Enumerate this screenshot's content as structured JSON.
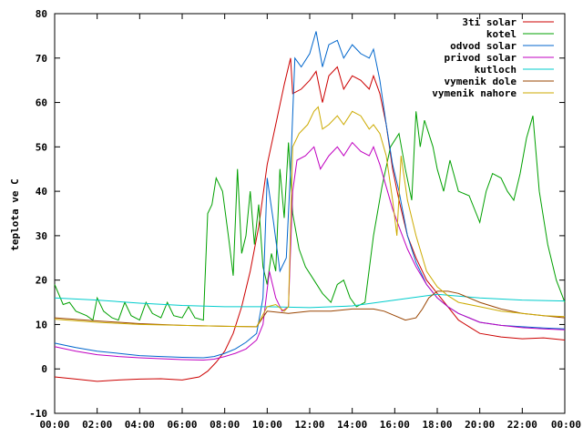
{
  "chart_data": {
    "type": "line",
    "title": "",
    "xlabel": "",
    "ylabel": "teplota ve C",
    "ylim": [
      -10,
      80
    ],
    "xlim": [
      0,
      24
    ],
    "yticks": [
      -10,
      0,
      10,
      20,
      30,
      40,
      50,
      60,
      70,
      80
    ],
    "xticks": [
      "00:00",
      "02:00",
      "04:00",
      "06:00",
      "08:00",
      "10:00",
      "12:00",
      "14:00",
      "16:00",
      "18:00",
      "20:00",
      "22:00",
      "00:00"
    ],
    "grid": false,
    "legend_position": "top-right",
    "series": [
      {
        "name": "3ti solar",
        "color": "#cc0000",
        "points": [
          [
            0,
            -1.8
          ],
          [
            1,
            -2.3
          ],
          [
            2,
            -2.8
          ],
          [
            3,
            -2.5
          ],
          [
            4,
            -2.3
          ],
          [
            5,
            -2.2
          ],
          [
            6,
            -2.5
          ],
          [
            6.8,
            -1.8
          ],
          [
            7.2,
            -0.5
          ],
          [
            7.6,
            1.5
          ],
          [
            8,
            4
          ],
          [
            8.4,
            8
          ],
          [
            8.8,
            14
          ],
          [
            9.2,
            22
          ],
          [
            9.6,
            32
          ],
          [
            10,
            46
          ],
          [
            10.4,
            55
          ],
          [
            10.8,
            64
          ],
          [
            11.1,
            70
          ],
          [
            11.2,
            62
          ],
          [
            11.6,
            63
          ],
          [
            12,
            65
          ],
          [
            12.3,
            67
          ],
          [
            12.6,
            60
          ],
          [
            12.9,
            66
          ],
          [
            13.3,
            68
          ],
          [
            13.6,
            63
          ],
          [
            14,
            66
          ],
          [
            14.4,
            65
          ],
          [
            14.8,
            63
          ],
          [
            15,
            66
          ],
          [
            15.3,
            62
          ],
          [
            15.6,
            55
          ],
          [
            15.9,
            45
          ],
          [
            16.2,
            38
          ],
          [
            16.6,
            30
          ],
          [
            17,
            25
          ],
          [
            17.5,
            20
          ],
          [
            18,
            17
          ],
          [
            18.5,
            14
          ],
          [
            19,
            11
          ],
          [
            19.5,
            9.5
          ],
          [
            20,
            8
          ],
          [
            21,
            7.2
          ],
          [
            22,
            6.8
          ],
          [
            23,
            7
          ],
          [
            24,
            6.5
          ]
        ]
      },
      {
        "name": "kotel",
        "color": "#00a000",
        "points": [
          [
            0,
            19
          ],
          [
            0.4,
            14.5
          ],
          [
            0.7,
            15
          ],
          [
            1,
            13
          ],
          [
            1.5,
            12
          ],
          [
            1.8,
            11
          ],
          [
            2,
            16
          ],
          [
            2.3,
            13
          ],
          [
            2.7,
            11.5
          ],
          [
            3,
            11
          ],
          [
            3.3,
            15
          ],
          [
            3.6,
            12
          ],
          [
            4,
            11
          ],
          [
            4.3,
            15
          ],
          [
            4.6,
            12.5
          ],
          [
            5,
            11.5
          ],
          [
            5.3,
            15
          ],
          [
            5.6,
            12
          ],
          [
            6,
            11.5
          ],
          [
            6.3,
            14
          ],
          [
            6.6,
            11.5
          ],
          [
            7,
            11
          ],
          [
            7.2,
            35
          ],
          [
            7.4,
            37
          ],
          [
            7.6,
            43
          ],
          [
            7.9,
            40
          ],
          [
            8.2,
            29
          ],
          [
            8.4,
            21
          ],
          [
            8.6,
            45
          ],
          [
            8.8,
            26
          ],
          [
            9,
            30
          ],
          [
            9.2,
            40
          ],
          [
            9.4,
            28
          ],
          [
            9.6,
            37
          ],
          [
            9.8,
            23
          ],
          [
            10,
            19
          ],
          [
            10.2,
            26
          ],
          [
            10.4,
            22
          ],
          [
            10.6,
            45
          ],
          [
            10.8,
            34
          ],
          [
            11,
            51
          ],
          [
            11.2,
            35
          ],
          [
            11.5,
            27
          ],
          [
            11.8,
            23
          ],
          [
            12.2,
            20
          ],
          [
            12.6,
            17
          ],
          [
            13,
            15
          ],
          [
            13.3,
            19
          ],
          [
            13.6,
            20
          ],
          [
            13.9,
            16
          ],
          [
            14.2,
            14
          ],
          [
            14.6,
            15
          ],
          [
            15,
            30
          ],
          [
            15.4,
            41
          ],
          [
            15.8,
            50
          ],
          [
            16.2,
            53
          ],
          [
            16.5,
            45
          ],
          [
            16.8,
            38
          ],
          [
            17,
            58
          ],
          [
            17.2,
            50
          ],
          [
            17.4,
            56
          ],
          [
            17.6,
            53
          ],
          [
            17.8,
            50
          ],
          [
            18,
            45
          ],
          [
            18.3,
            40
          ],
          [
            18.6,
            47
          ],
          [
            19,
            40
          ],
          [
            19.5,
            39
          ],
          [
            20,
            33
          ],
          [
            20.3,
            40
          ],
          [
            20.6,
            44
          ],
          [
            21,
            43
          ],
          [
            21.3,
            40
          ],
          [
            21.6,
            38
          ],
          [
            21.9,
            44
          ],
          [
            22.2,
            52
          ],
          [
            22.5,
            57
          ],
          [
            22.8,
            40
          ],
          [
            23.2,
            28
          ],
          [
            23.6,
            20
          ],
          [
            24,
            15
          ]
        ]
      },
      {
        "name": "odvod solar",
        "color": "#0066cc",
        "points": [
          [
            0,
            5.8
          ],
          [
            1,
            4.8
          ],
          [
            2,
            4
          ],
          [
            3,
            3.5
          ],
          [
            4,
            3
          ],
          [
            5,
            2.8
          ],
          [
            6,
            2.6
          ],
          [
            7,
            2.5
          ],
          [
            7.5,
            2.8
          ],
          [
            8,
            3.5
          ],
          [
            8.5,
            4.5
          ],
          [
            9,
            6
          ],
          [
            9.5,
            8
          ],
          [
            9.8,
            16
          ],
          [
            10,
            43
          ],
          [
            10.3,
            33
          ],
          [
            10.6,
            22
          ],
          [
            10.9,
            25
          ],
          [
            11.1,
            45
          ],
          [
            11.3,
            70
          ],
          [
            11.6,
            68
          ],
          [
            12,
            71
          ],
          [
            12.3,
            76
          ],
          [
            12.6,
            68
          ],
          [
            12.9,
            73
          ],
          [
            13.3,
            74
          ],
          [
            13.6,
            70
          ],
          [
            14,
            73
          ],
          [
            14.4,
            71
          ],
          [
            14.8,
            70
          ],
          [
            15,
            72
          ],
          [
            15.3,
            65
          ],
          [
            15.6,
            55
          ],
          [
            15.9,
            46
          ],
          [
            16.2,
            40
          ],
          [
            16.6,
            30
          ],
          [
            17,
            24
          ],
          [
            17.5,
            19
          ],
          [
            18,
            16
          ],
          [
            18.5,
            14
          ],
          [
            19,
            12.5
          ],
          [
            19.5,
            11.5
          ],
          [
            20,
            10.5
          ],
          [
            21,
            9.8
          ],
          [
            22,
            9.5
          ],
          [
            23,
            9.2
          ],
          [
            24,
            9
          ]
        ]
      },
      {
        "name": "privod solar",
        "color": "#c000c0",
        "points": [
          [
            0,
            5
          ],
          [
            1,
            4
          ],
          [
            2,
            3.2
          ],
          [
            3,
            2.8
          ],
          [
            4,
            2.5
          ],
          [
            5,
            2.3
          ],
          [
            6,
            2.1
          ],
          [
            7,
            2
          ],
          [
            7.5,
            2.2
          ],
          [
            8,
            2.8
          ],
          [
            8.5,
            3.5
          ],
          [
            9,
            4.5
          ],
          [
            9.5,
            6.5
          ],
          [
            9.8,
            10
          ],
          [
            10.1,
            22
          ],
          [
            10.4,
            16
          ],
          [
            10.7,
            13
          ],
          [
            11,
            14
          ],
          [
            11.2,
            40
          ],
          [
            11.4,
            47
          ],
          [
            11.8,
            48
          ],
          [
            12.2,
            50
          ],
          [
            12.5,
            45
          ],
          [
            12.9,
            48
          ],
          [
            13.3,
            50
          ],
          [
            13.6,
            48
          ],
          [
            14,
            51
          ],
          [
            14.4,
            49
          ],
          [
            14.8,
            48
          ],
          [
            15,
            50
          ],
          [
            15.3,
            46
          ],
          [
            15.6,
            41
          ],
          [
            15.9,
            36
          ],
          [
            16.2,
            32
          ],
          [
            16.6,
            27
          ],
          [
            17,
            23
          ],
          [
            17.5,
            19
          ],
          [
            18,
            16
          ],
          [
            18.5,
            14
          ],
          [
            19,
            12.5
          ],
          [
            19.5,
            11.5
          ],
          [
            20,
            10.5
          ],
          [
            21,
            9.8
          ],
          [
            22,
            9.3
          ],
          [
            23,
            9
          ],
          [
            24,
            8.8
          ]
        ]
      },
      {
        "name": "kutloch",
        "color": "#00cccc",
        "points": [
          [
            0,
            16
          ],
          [
            2,
            15.5
          ],
          [
            4,
            14.8
          ],
          [
            6,
            14.3
          ],
          [
            8,
            14.0
          ],
          [
            10,
            14.0
          ],
          [
            12,
            13.8
          ],
          [
            14,
            14.2
          ],
          [
            16,
            15.5
          ],
          [
            18,
            16.8
          ],
          [
            20,
            16
          ],
          [
            22,
            15.5
          ],
          [
            24,
            15.3
          ]
        ]
      },
      {
        "name": "vymenik dole",
        "color": "#994400",
        "points": [
          [
            0,
            11.5
          ],
          [
            2,
            10.8
          ],
          [
            4,
            10.2
          ],
          [
            6,
            9.8
          ],
          [
            8,
            9.6
          ],
          [
            9.5,
            9.5
          ],
          [
            10,
            13
          ],
          [
            11,
            12.5
          ],
          [
            12,
            13
          ],
          [
            13,
            13
          ],
          [
            14,
            13.5
          ],
          [
            15,
            13.5
          ],
          [
            15.5,
            13
          ],
          [
            16,
            12
          ],
          [
            16.5,
            11
          ],
          [
            17,
            11.5
          ],
          [
            17.3,
            13.5
          ],
          [
            17.6,
            16
          ],
          [
            18,
            17.5
          ],
          [
            18.5,
            17.5
          ],
          [
            19,
            17
          ],
          [
            20,
            15
          ],
          [
            21,
            13.5
          ],
          [
            22,
            12.5
          ],
          [
            23,
            12
          ],
          [
            24,
            11.5
          ]
        ]
      },
      {
        "name": "vymenik nahore",
        "color": "#ccaa00",
        "points": [
          [
            0,
            11.2
          ],
          [
            2,
            10.5
          ],
          [
            4,
            10
          ],
          [
            6,
            9.8
          ],
          [
            8,
            9.6
          ],
          [
            9.5,
            9.5
          ],
          [
            10,
            14
          ],
          [
            10.4,
            14.5
          ],
          [
            10.8,
            13
          ],
          [
            11,
            14
          ],
          [
            11.2,
            50
          ],
          [
            11.5,
            53
          ],
          [
            11.9,
            55
          ],
          [
            12.2,
            58
          ],
          [
            12.4,
            59
          ],
          [
            12.6,
            54
          ],
          [
            12.9,
            55
          ],
          [
            13.3,
            57
          ],
          [
            13.6,
            55
          ],
          [
            14,
            58
          ],
          [
            14.4,
            57
          ],
          [
            14.8,
            54
          ],
          [
            15,
            55
          ],
          [
            15.3,
            53
          ],
          [
            15.6,
            48
          ],
          [
            15.9,
            38
          ],
          [
            16.1,
            30
          ],
          [
            16.3,
            48
          ],
          [
            16.6,
            38
          ],
          [
            17,
            30
          ],
          [
            17.5,
            22
          ],
          [
            18,
            18.5
          ],
          [
            18.5,
            16.5
          ],
          [
            19,
            15
          ],
          [
            20,
            14
          ],
          [
            21,
            13
          ],
          [
            22,
            12.5
          ],
          [
            23,
            12
          ],
          [
            24,
            11.8
          ]
        ]
      }
    ]
  }
}
